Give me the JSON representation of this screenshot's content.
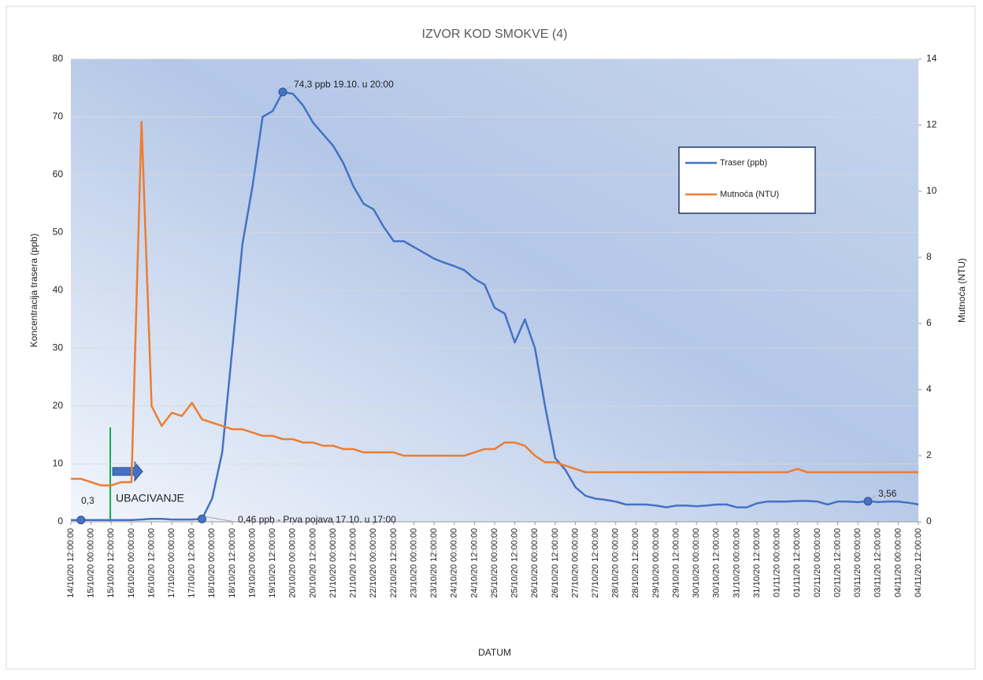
{
  "chart_data": {
    "type": "line",
    "title": "IZVOR KOD SMOKVE (4)",
    "xlabel": "DATUM",
    "ylabel": "Koncentracija trasera (ppb)",
    "y2label": "Mutnoća (NTU)",
    "categories": [
      "14/10/20 12:00:00",
      null,
      "15/10/20 00:00:00",
      null,
      "15/10/20 12:00:00",
      null,
      "16/10/20 00:00:00",
      null,
      "16/10/20 12:00:00",
      null,
      "17/10/20 00:00:00",
      null,
      "17/10/20 12:00:00",
      null,
      "18/10/20 00:00:00",
      null,
      "18/10/20 12:00:00",
      null,
      "19/10/20 00:00:00",
      null,
      "19/10/20 12:00:00",
      null,
      "20/10/20 00:00:00",
      null,
      "20/10/20 12:00:00",
      null,
      "21/10/20 00:00:00",
      null,
      "21/10/20 12:00:00",
      null,
      "22/10/20 00:00:00",
      null,
      "22/10/20 12:00:00",
      null,
      "23/10/20 00:00:00",
      null,
      "23/10/20 12:00:00",
      null,
      "24/10/20 00:00:00",
      null,
      "24/10/20 12:00:00",
      null,
      "25/10/20 00:00:00",
      null,
      "25/10/20 12:00:00",
      null,
      "26/10/20 00:00:00",
      null,
      "26/10/20 12:00:00",
      null,
      "27/10/20 00:00:00",
      null,
      "27/10/20 12:00:00",
      null,
      "28/10/20 00:00:00",
      null,
      "28/10/20 12:00:00",
      null,
      "29/10/20 00:00:00",
      null,
      "29/10/20 12:00:00",
      null,
      "30/10/20 00:00:00",
      null,
      "30/10/20 12:00:00",
      null,
      "31/10/20 00:00:00",
      null,
      "31/10/20 12:00:00",
      null,
      "01/11/20 00:00:00",
      null,
      "01/11/20 12:00:00",
      null,
      "02/11/20 00:00:00",
      null,
      "02/11/20 12:00:00",
      null,
      "03/11/20 00:00:00",
      null,
      "03/11/20 12:00:00",
      null,
      "04/11/20 00:00:00",
      null,
      "04/11/20 12:00:00"
    ],
    "series": [
      {
        "name": "Traser (ppb)",
        "color": "#4472c4",
        "values": [
          0.3,
          0.3,
          0.3,
          0.3,
          0.3,
          0.3,
          0.3,
          0.4,
          0.5,
          0.5,
          0.4,
          0.4,
          0.4,
          0.5,
          4,
          12,
          30,
          48,
          58,
          70,
          71,
          74.3,
          74,
          72,
          69,
          67,
          65,
          62,
          58,
          55,
          54,
          51,
          48.5,
          48.5,
          47.5,
          46.5,
          45.5,
          44.8,
          44.2,
          43.5,
          42,
          41,
          37,
          36,
          31,
          35,
          30,
          20,
          11,
          9,
          6,
          4.5,
          4,
          3.8,
          3.5,
          3,
          3,
          3,
          2.8,
          2.5,
          2.8,
          2.8,
          2.7,
          2.8,
          3,
          3,
          2.5,
          2.5,
          3.2,
          3.5,
          3.5,
          3.5,
          3.6,
          3.6,
          3.5,
          3,
          3.5,
          3.5,
          3.4,
          3.56,
          3.4,
          3.5,
          3.5,
          3.3,
          3
        ]
      },
      {
        "name": "Mutnoća (NTU)",
        "color": "#ed7d31",
        "axis": "y2",
        "values": [
          1.3,
          1.3,
          1.2,
          1.1,
          1.1,
          1.2,
          1.2,
          12.1,
          3.5,
          2.9,
          3.3,
          3.2,
          3.6,
          3.1,
          3.0,
          2.9,
          2.8,
          2.8,
          2.7,
          2.6,
          2.6,
          2.5,
          2.5,
          2.4,
          2.4,
          2.3,
          2.3,
          2.2,
          2.2,
          2.1,
          2.1,
          2.1,
          2.1,
          2.0,
          2.0,
          2.0,
          2.0,
          2.0,
          2.0,
          2.0,
          2.1,
          2.2,
          2.2,
          2.4,
          2.4,
          2.3,
          2.0,
          1.8,
          1.8,
          1.7,
          1.6,
          1.5,
          1.5,
          1.5,
          1.5,
          1.5,
          1.5,
          1.5,
          1.5,
          1.5,
          1.5,
          1.5,
          1.5,
          1.5,
          1.5,
          1.5,
          1.5,
          1.5,
          1.5,
          1.5,
          1.5,
          1.5,
          1.6,
          1.5,
          1.5,
          1.5,
          1.5,
          1.5,
          1.5,
          1.5,
          1.5,
          1.5,
          1.5,
          1.5,
          1.5
        ]
      }
    ],
    "ylim": [
      0,
      80
    ],
    "yticks": [
      0,
      10,
      20,
      30,
      40,
      50,
      60,
      70,
      80
    ],
    "y2lim": [
      0,
      14
    ],
    "y2ticks": [
      0,
      2,
      4,
      6,
      8,
      10,
      12,
      14
    ],
    "grid": true,
    "legend": "upper right",
    "annotations": [
      "74,3 ppb 19.10. u 20:00",
      "0,46 ppb - Prva pojava 17.10. u 17:00",
      "0,3",
      "3,56",
      "UBACIVANJE"
    ]
  }
}
